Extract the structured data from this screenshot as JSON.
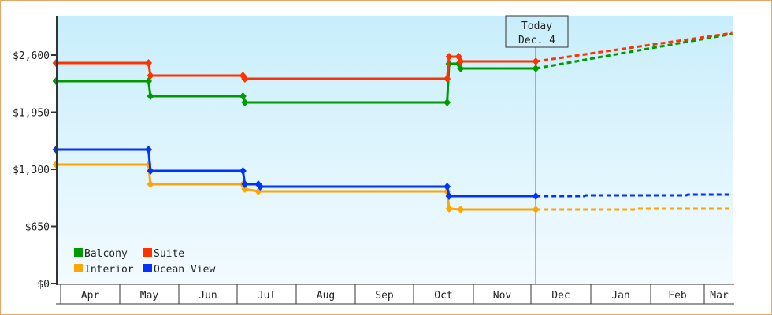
{
  "chart_data": {
    "type": "line",
    "title": "",
    "xlabel": "",
    "ylabel": "",
    "ylim": [
      0,
      3250
    ],
    "y_ticks": [
      "$0",
      "$650",
      "$1,300",
      "$1,950",
      "$2,600"
    ],
    "y_tick_values": [
      0,
      650,
      1300,
      1950,
      2600
    ],
    "x_ticks": [
      "Apr",
      "May",
      "Jun",
      "Jul",
      "Aug",
      "Sep",
      "Oct",
      "Nov",
      "Dec",
      "Jan",
      "Feb",
      "Mar"
    ],
    "x_range": [
      "2000-03-30",
      "2001-03-16"
    ],
    "grid": false,
    "legend_placement": "bottom-left",
    "today": {
      "line1": "Today",
      "line2": "Dec. 4",
      "date": "2000-12-04"
    },
    "series": [
      {
        "name": "Balcony",
        "color": "#009900",
        "points": [
          [
            "2000-03-30",
            2304
          ],
          [
            "2000-05-17",
            2304
          ],
          [
            "2000-05-18",
            2134
          ],
          [
            "2000-07-05",
            2134
          ],
          [
            "2000-07-06",
            2062
          ],
          [
            "2000-10-19",
            2062
          ],
          [
            "2000-10-20",
            2501
          ],
          [
            "2000-10-25",
            2501
          ],
          [
            "2000-10-26",
            2448
          ],
          [
            "2000-12-04",
            2448
          ]
        ],
        "projection": [
          [
            "2000-12-04",
            2448
          ],
          [
            "2001-03-16",
            2842
          ]
        ]
      },
      {
        "name": "Suite",
        "color": "#ff3300",
        "points": [
          [
            "2000-03-30",
            2510
          ],
          [
            "2000-05-17",
            2510
          ],
          [
            "2000-05-18",
            2367
          ],
          [
            "2000-07-05",
            2367
          ],
          [
            "2000-07-06",
            2331
          ],
          [
            "2000-10-19",
            2331
          ],
          [
            "2000-10-20",
            2582
          ],
          [
            "2000-10-25",
            2582
          ],
          [
            "2000-10-26",
            2528
          ],
          [
            "2000-12-04",
            2528
          ]
        ],
        "projection": [
          [
            "2000-12-04",
            2528
          ],
          [
            "2001-03-16",
            2851
          ]
        ]
      },
      {
        "name": "Interior",
        "color": "#ffa500",
        "points": [
          [
            "2000-03-30",
            1354
          ],
          [
            "2000-05-17",
            1354
          ],
          [
            "2000-05-18",
            1130
          ],
          [
            "2000-07-05",
            1130
          ],
          [
            "2000-07-06",
            1076
          ],
          [
            "2000-07-13",
            1049
          ],
          [
            "2000-10-19",
            1049
          ],
          [
            "2000-10-20",
            852
          ],
          [
            "2000-10-26",
            843
          ],
          [
            "2000-12-04",
            843
          ]
        ],
        "projection": [
          [
            "2000-12-04",
            843
          ],
          [
            "2001-01-25",
            843
          ],
          [
            "2001-01-26",
            852
          ],
          [
            "2001-03-16",
            852
          ]
        ]
      },
      {
        "name": "Ocean View",
        "color": "#0033ff",
        "points": [
          [
            "2000-03-30",
            1524
          ],
          [
            "2000-05-17",
            1524
          ],
          [
            "2000-05-18",
            1282
          ],
          [
            "2000-07-05",
            1282
          ],
          [
            "2000-07-06",
            1130
          ],
          [
            "2000-07-13",
            1130
          ],
          [
            "2000-07-14",
            1103
          ],
          [
            "2000-10-19",
            1103
          ],
          [
            "2000-10-20",
            995
          ],
          [
            "2000-12-04",
            995
          ]
        ],
        "projection": [
          [
            "2000-12-04",
            995
          ],
          [
            "2000-12-29",
            995
          ],
          [
            "2000-12-30",
            1004
          ],
          [
            "2001-02-20",
            1004
          ],
          [
            "2001-02-21",
            1013
          ],
          [
            "2001-03-16",
            1013
          ]
        ]
      }
    ]
  }
}
